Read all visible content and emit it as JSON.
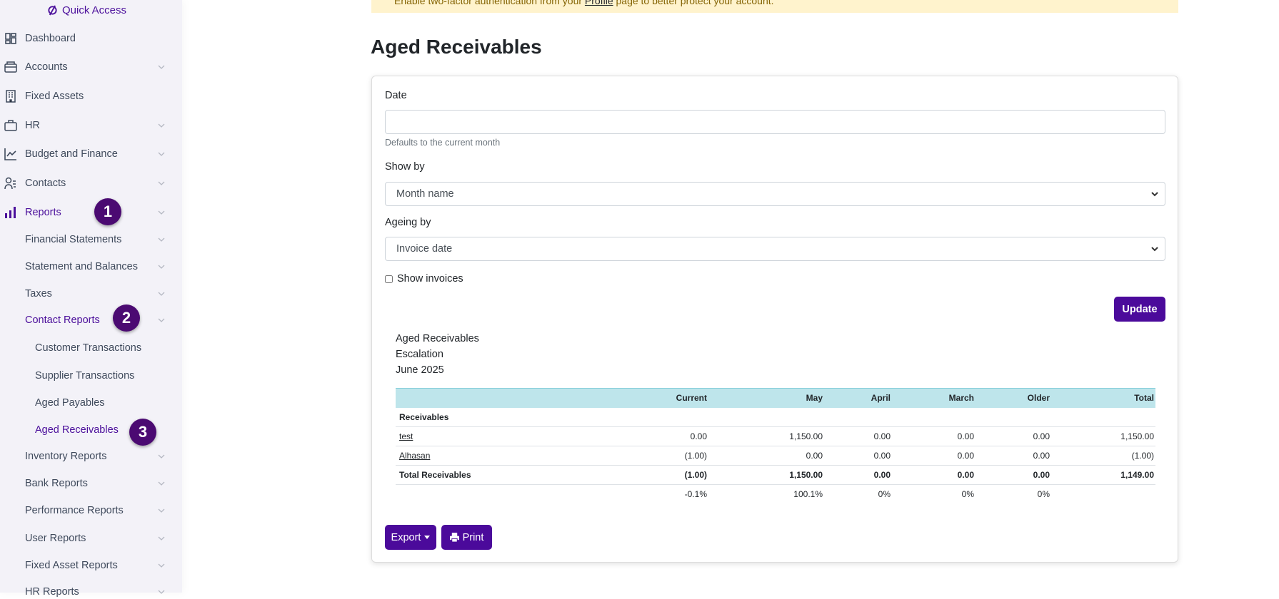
{
  "sidebar": {
    "quick_access": "Quick Access",
    "items": [
      {
        "label": "Dashboard",
        "icon": "dashboard-icon"
      },
      {
        "label": "Accounts",
        "icon": "wallet-icon"
      },
      {
        "label": "Fixed Assets",
        "icon": "building-icon"
      },
      {
        "label": "HR",
        "icon": "briefcase-icon"
      },
      {
        "label": "Budget and Finance",
        "icon": "chart-line-icon"
      },
      {
        "label": "Contacts",
        "icon": "contacts-icon"
      },
      {
        "label": "Reports",
        "icon": "bar-chart-icon"
      }
    ],
    "report_items": [
      "Financial Statements",
      "Statement and Balances",
      "Taxes",
      "Contact Reports"
    ],
    "contact_sub": [
      "Customer Transactions",
      "Supplier Transactions",
      "Aged Payables",
      "Aged Receivables"
    ],
    "report_items2": [
      "Inventory Reports",
      "Bank Reports",
      "Performance Reports",
      "User Reports",
      "Fixed Asset Reports",
      "HR Reports"
    ],
    "badges": [
      "1",
      "2",
      "3"
    ]
  },
  "banner": {
    "before": "Enable two-factor authentication from your ",
    "link": "Profile",
    "after": " page to better protect your account."
  },
  "page_title": "Aged Receivables",
  "form": {
    "date_label": "Date",
    "date_value": "",
    "date_help": "Defaults to the current month",
    "show_by_label": "Show by",
    "show_by_value": "Month name",
    "ageing_label": "Ageing by",
    "ageing_value": "Invoice date",
    "show_invoices_label": "Show invoices",
    "update": "Update"
  },
  "report": {
    "title": "Aged Receivables",
    "company": "Escalation",
    "period": "June 2025",
    "columns": [
      "",
      "Current",
      "May",
      "April",
      "March",
      "Older",
      "Total"
    ],
    "section": "Receivables",
    "rows": [
      [
        "test",
        "0.00",
        "1,150.00",
        "0.00",
        "0.00",
        "0.00",
        "1,150.00"
      ],
      [
        "Alhasan",
        "(1.00)",
        "0.00",
        "0.00",
        "0.00",
        "0.00",
        "(1.00)"
      ]
    ],
    "total": [
      "Total Receivables",
      "(1.00)",
      "1,150.00",
      "0.00",
      "0.00",
      "0.00",
      "1,149.00"
    ],
    "percent": [
      "",
      "-0.1%",
      "100.1%",
      "0%",
      "0%",
      "0%",
      ""
    ]
  },
  "actions": {
    "export": "Export",
    "print": "Print"
  },
  "colors": {
    "accent": "#4b0a9b",
    "table_header": "#bee5eb",
    "banner": "#fff3cd",
    "sidebar": "#f3f2f8"
  }
}
